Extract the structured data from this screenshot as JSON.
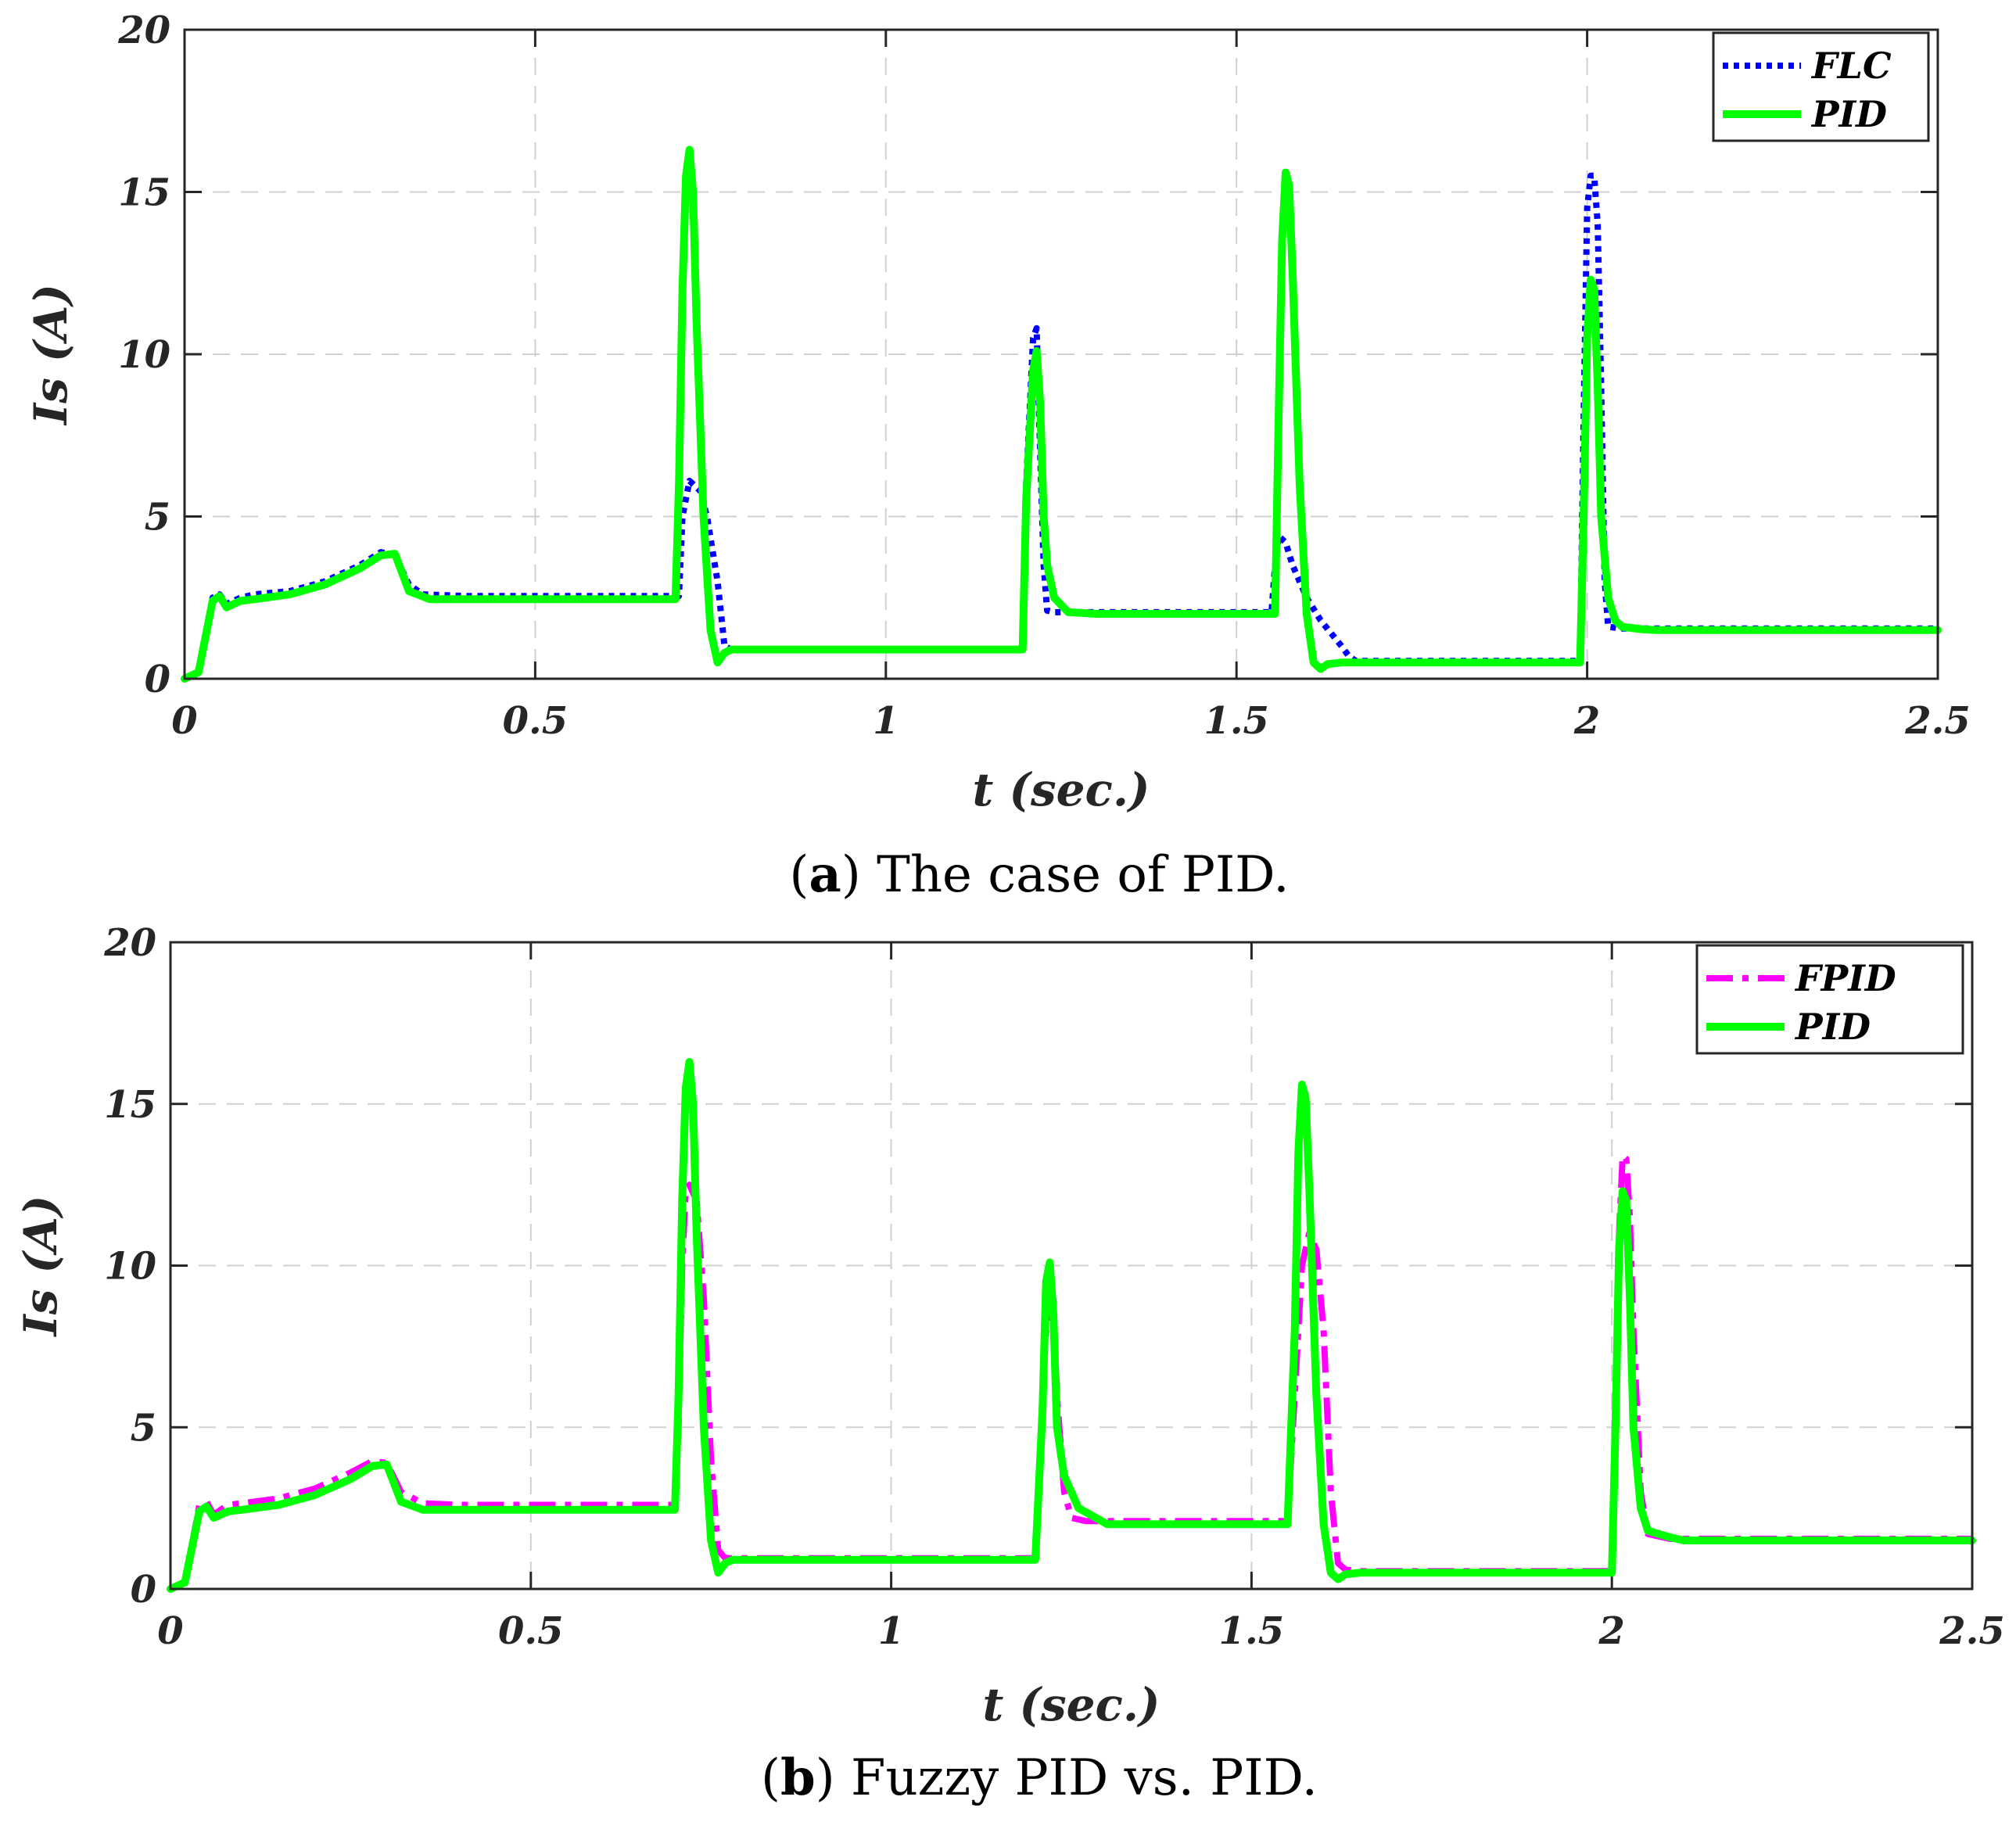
{
  "chart_data": [
    {
      "type": "line",
      "panel": "a",
      "caption_letter": "a",
      "caption_text": "The case of PID.",
      "xlabel": "t (sec.)",
      "ylabel": "Is (A)",
      "xlim": [
        0,
        2.5
      ],
      "ylim": [
        0,
        20
      ],
      "xticks": [
        "0",
        "0.5",
        "1",
        "1.5",
        "2",
        "2.5"
      ],
      "yticks": [
        "0",
        "5",
        "10",
        "15",
        "20"
      ],
      "grid": true,
      "legend_position": "top-right",
      "series": [
        {
          "name": "FLC",
          "color": "#0000ff",
          "style": "dotted",
          "x": [
            0,
            0.02,
            0.04,
            0.05,
            0.06,
            0.08,
            0.1,
            0.15,
            0.2,
            0.25,
            0.28,
            0.3,
            0.32,
            0.34,
            0.4,
            0.5,
            0.6,
            0.7,
            0.705,
            0.71,
            0.72,
            0.735,
            0.745,
            0.76,
            0.77,
            0.78,
            0.8,
            0.9,
            1.0,
            1.1,
            1.195,
            1.2,
            1.21,
            1.215,
            1.22,
            1.225,
            1.23,
            1.24,
            1.26,
            1.3,
            1.4,
            1.5,
            1.55,
            1.555,
            1.56,
            1.57,
            1.58,
            1.6,
            1.62,
            1.65,
            1.66,
            1.67,
            1.7,
            1.8,
            1.9,
            1.99,
            1.995,
            2.0,
            2.005,
            2.01,
            2.015,
            2.02,
            2.025,
            2.03,
            2.05,
            2.1,
            2.2,
            2.3,
            2.4,
            2.5
          ],
          "y": [
            0,
            0.2,
            2.5,
            2.6,
            2.3,
            2.5,
            2.6,
            2.7,
            3.0,
            3.5,
            3.9,
            3.8,
            2.9,
            2.6,
            2.55,
            2.55,
            2.55,
            2.55,
            2.55,
            5.0,
            6.1,
            5.8,
            5.0,
            3.0,
            1.0,
            0.9,
            0.9,
            0.9,
            0.9,
            0.9,
            0.9,
            6.0,
            10.5,
            10.8,
            7.0,
            3.5,
            2.1,
            2.05,
            2.05,
            2.05,
            2.05,
            2.05,
            2.05,
            3.5,
            4.4,
            4.2,
            3.5,
            2.5,
            1.8,
            1.0,
            0.7,
            0.55,
            0.55,
            0.55,
            0.55,
            0.55,
            8.0,
            14.5,
            15.5,
            15.5,
            14.0,
            9.0,
            3.0,
            1.6,
            1.55,
            1.55,
            1.55,
            1.55,
            1.55,
            1.55
          ]
        },
        {
          "name": "PID",
          "color": "#00ff00",
          "style": "solid",
          "x": [
            0,
            0.02,
            0.04,
            0.05,
            0.06,
            0.08,
            0.1,
            0.15,
            0.2,
            0.25,
            0.28,
            0.3,
            0.32,
            0.35,
            0.4,
            0.5,
            0.6,
            0.7,
            0.705,
            0.71,
            0.715,
            0.72,
            0.725,
            0.73,
            0.74,
            0.75,
            0.76,
            0.77,
            0.78,
            0.8,
            0.9,
            1.0,
            1.1,
            1.195,
            1.2,
            1.21,
            1.215,
            1.22,
            1.225,
            1.23,
            1.24,
            1.26,
            1.3,
            1.4,
            1.5,
            1.555,
            1.56,
            1.565,
            1.57,
            1.575,
            1.58,
            1.59,
            1.6,
            1.61,
            1.62,
            1.63,
            1.65,
            1.7,
            1.8,
            1.9,
            1.99,
            1.995,
            2.0,
            2.005,
            2.01,
            2.015,
            2.02,
            2.03,
            2.04,
            2.05,
            2.08,
            2.1,
            2.2,
            2.3,
            2.4,
            2.5
          ],
          "y": [
            0,
            0.2,
            2.4,
            2.55,
            2.2,
            2.4,
            2.45,
            2.6,
            2.9,
            3.4,
            3.8,
            3.85,
            2.7,
            2.45,
            2.45,
            2.45,
            2.45,
            2.45,
            6.0,
            12.0,
            15.5,
            16.3,
            15.0,
            11.0,
            5.0,
            1.5,
            0.5,
            0.8,
            0.9,
            0.9,
            0.9,
            0.9,
            0.9,
            0.9,
            5.5,
            9.5,
            10.1,
            8.5,
            5.0,
            3.5,
            2.5,
            2.05,
            2.0,
            2.0,
            2.0,
            2.0,
            8.0,
            13.5,
            15.6,
            15.2,
            12.5,
            6.0,
            2.0,
            0.5,
            0.3,
            0.45,
            0.5,
            0.5,
            0.5,
            0.5,
            0.5,
            5.0,
            10.5,
            12.3,
            12.0,
            9.0,
            5.0,
            2.5,
            1.8,
            1.6,
            1.52,
            1.5,
            1.5,
            1.5,
            1.5,
            1.5
          ]
        }
      ]
    },
    {
      "type": "line",
      "panel": "b",
      "caption_letter": "b",
      "caption_text": "Fuzzy PID vs. PID.",
      "xlabel": "t (sec.)",
      "ylabel": "Is (A)",
      "xlim": [
        0,
        2.5
      ],
      "ylim": [
        0,
        20
      ],
      "xticks": [
        "0",
        "0.5",
        "1",
        "1.5",
        "2",
        "2.5"
      ],
      "yticks": [
        "0",
        "5",
        "10",
        "15",
        "20"
      ],
      "grid": true,
      "legend_position": "top-right",
      "series": [
        {
          "name": "FPID",
          "color": "#ff00ff",
          "style": "dashdot",
          "x": [
            0,
            0.02,
            0.04,
            0.05,
            0.06,
            0.08,
            0.1,
            0.15,
            0.2,
            0.25,
            0.28,
            0.3,
            0.32,
            0.35,
            0.4,
            0.5,
            0.6,
            0.7,
            0.705,
            0.71,
            0.715,
            0.72,
            0.73,
            0.74,
            0.75,
            0.76,
            0.77,
            0.8,
            0.9,
            1.0,
            1.1,
            1.2,
            1.21,
            1.22,
            1.225,
            1.23,
            1.24,
            1.25,
            1.27,
            1.3,
            1.4,
            1.5,
            1.55,
            1.56,
            1.57,
            1.58,
            1.59,
            1.6,
            1.61,
            1.62,
            1.63,
            1.65,
            1.7,
            1.8,
            1.9,
            2.0,
            2.005,
            2.01,
            2.015,
            2.02,
            2.025,
            2.03,
            2.04,
            2.05,
            2.08,
            2.1,
            2.2,
            2.3,
            2.4,
            2.5
          ],
          "y": [
            0,
            0.2,
            2.6,
            2.7,
            2.3,
            2.6,
            2.65,
            2.8,
            3.1,
            3.6,
            3.95,
            3.9,
            3.0,
            2.65,
            2.6,
            2.6,
            2.6,
            2.6,
            5.0,
            10.0,
            12.3,
            12.5,
            12.0,
            9.0,
            4.0,
            1.2,
            0.95,
            0.95,
            0.95,
            0.95,
            0.95,
            0.95,
            6.0,
            10.0,
            9.0,
            6.0,
            3.0,
            2.2,
            2.1,
            2.1,
            2.1,
            2.1,
            2.1,
            6.0,
            10.0,
            11.0,
            10.5,
            8.0,
            3.0,
            0.8,
            0.6,
            0.55,
            0.55,
            0.55,
            0.55,
            0.55,
            5.0,
            11.0,
            13.4,
            13.3,
            11.5,
            8.0,
            3.0,
            1.7,
            1.55,
            1.55,
            1.55,
            1.55,
            1.55,
            1.55
          ]
        },
        {
          "name": "PID",
          "color": "#00ff00",
          "style": "solid",
          "x": [
            0,
            0.02,
            0.04,
            0.05,
            0.06,
            0.08,
            0.1,
            0.15,
            0.2,
            0.25,
            0.28,
            0.3,
            0.32,
            0.35,
            0.4,
            0.5,
            0.6,
            0.7,
            0.705,
            0.71,
            0.715,
            0.72,
            0.725,
            0.73,
            0.74,
            0.75,
            0.76,
            0.77,
            0.78,
            0.8,
            0.9,
            1.0,
            1.1,
            1.2,
            1.21,
            1.215,
            1.22,
            1.225,
            1.23,
            1.24,
            1.26,
            1.3,
            1.4,
            1.5,
            1.55,
            1.56,
            1.565,
            1.57,
            1.575,
            1.58,
            1.59,
            1.6,
            1.61,
            1.62,
            1.63,
            1.65,
            1.7,
            1.8,
            1.9,
            2.0,
            2.005,
            2.01,
            2.015,
            2.02,
            2.025,
            2.03,
            2.04,
            2.05,
            2.08,
            2.1,
            2.2,
            2.3,
            2.4,
            2.5
          ],
          "y": [
            0,
            0.2,
            2.4,
            2.55,
            2.2,
            2.4,
            2.45,
            2.6,
            2.9,
            3.4,
            3.8,
            3.85,
            2.7,
            2.45,
            2.45,
            2.45,
            2.45,
            2.45,
            6.0,
            12.0,
            15.5,
            16.3,
            15.0,
            11.0,
            5.0,
            1.5,
            0.5,
            0.8,
            0.9,
            0.9,
            0.9,
            0.9,
            0.9,
            0.9,
            5.5,
            9.5,
            10.1,
            8.5,
            5.0,
            3.5,
            2.5,
            2.0,
            2.0,
            2.0,
            2.0,
            8.0,
            13.5,
            15.6,
            15.2,
            12.5,
            6.0,
            2.0,
            0.5,
            0.3,
            0.45,
            0.5,
            0.5,
            0.5,
            0.5,
            0.5,
            5.0,
            10.5,
            12.3,
            12.0,
            9.0,
            5.0,
            2.5,
            1.8,
            1.6,
            1.5,
            1.5,
            1.5,
            1.5,
            1.5
          ]
        }
      ]
    }
  ]
}
